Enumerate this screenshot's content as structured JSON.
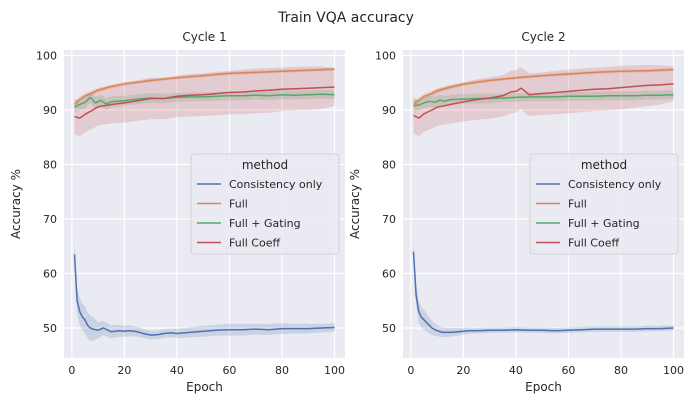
{
  "figure": {
    "title": "Train VQA accuracy"
  },
  "chart_data": [
    {
      "type": "line",
      "title": "Cycle 1",
      "xlabel": "Epoch",
      "ylabel": "Accuracy %",
      "xlim": [
        -3,
        104
      ],
      "ylim": [
        44.5,
        101
      ],
      "xticks": [
        0,
        20,
        40,
        60,
        80,
        100
      ],
      "yticks": [
        50,
        60,
        70,
        80,
        90,
        100
      ],
      "grid": true,
      "legend": {
        "title": "method",
        "placement": "center-right"
      },
      "series": [
        {
          "name": "Consistency only",
          "color": "#4c72b0",
          "x": [
            1,
            2,
            3,
            4,
            5,
            6,
            7,
            8,
            10,
            12,
            15,
            18,
            20,
            22,
            25,
            28,
            30,
            33,
            35,
            38,
            40,
            45,
            50,
            55,
            60,
            65,
            70,
            75,
            80,
            85,
            90,
            95,
            100
          ],
          "y": [
            63.5,
            55.0,
            53.0,
            52.0,
            51.5,
            50.5,
            50.0,
            49.8,
            49.6,
            50.0,
            49.3,
            49.5,
            49.4,
            49.5,
            49.3,
            48.9,
            48.7,
            48.8,
            49.0,
            49.1,
            49.0,
            49.2,
            49.4,
            49.6,
            49.7,
            49.7,
            49.8,
            49.7,
            49.9,
            49.9,
            49.9,
            50.0,
            50.1
          ],
          "band": [
            2.5,
            2.5,
            2.5,
            2.5,
            2.5,
            2.4,
            2.3,
            2.2,
            1.5,
            1.3,
            1.2,
            1.1,
            1.0,
            1.0,
            0.9,
            0.8,
            0.8,
            0.8,
            0.8,
            0.8,
            0.9,
            0.9,
            1.0,
            1.0,
            1.1,
            1.1,
            1.0,
            1.0,
            1.0,
            0.9,
            0.9,
            0.8,
            0.8
          ]
        },
        {
          "name": "Full",
          "color": "#dd8452",
          "x": [
            1,
            3,
            5,
            8,
            10,
            15,
            20,
            25,
            30,
            40,
            50,
            60,
            70,
            80,
            90,
            100
          ],
          "y": [
            91.0,
            92.0,
            92.6,
            93.2,
            93.6,
            94.3,
            94.8,
            95.1,
            95.4,
            95.9,
            96.3,
            96.7,
            96.9,
            97.1,
            97.3,
            97.5
          ],
          "band": [
            0.6,
            0.5,
            0.5,
            0.5,
            0.4,
            0.4,
            0.4,
            0.3,
            0.3,
            0.3,
            0.3,
            0.3,
            0.3,
            0.3,
            0.3,
            0.3
          ]
        },
        {
          "name": "Full + Gating",
          "color": "#55a868",
          "x": [
            1,
            3,
            5,
            7,
            9,
            11,
            13,
            15,
            20,
            25,
            30,
            35,
            40,
            45,
            50,
            55,
            60,
            65,
            70,
            75,
            80,
            85,
            90,
            95,
            100
          ],
          "y": [
            90.5,
            91.0,
            91.4,
            92.3,
            91.3,
            91.8,
            91.1,
            91.5,
            91.7,
            92.0,
            92.2,
            92.1,
            92.3,
            92.4,
            92.4,
            92.5,
            92.6,
            92.6,
            92.7,
            92.6,
            92.8,
            92.7,
            92.8,
            92.9,
            92.8
          ],
          "band": [
            1.0,
            1.0,
            1.2,
            1.0,
            1.1,
            1.0,
            1.1,
            1.0,
            0.9,
            0.9,
            0.9,
            0.9,
            0.8,
            0.8,
            0.8,
            0.8,
            0.8,
            0.8,
            0.8,
            0.8,
            0.8,
            0.8,
            0.8,
            0.8,
            0.8
          ]
        },
        {
          "name": "Full Coeff",
          "color": "#c44e52",
          "x": [
            1,
            3,
            5,
            8,
            10,
            15,
            20,
            25,
            30,
            35,
            40,
            45,
            50,
            55,
            60,
            65,
            70,
            75,
            80,
            85,
            90,
            95,
            100
          ],
          "y": [
            88.8,
            88.5,
            89.2,
            90.0,
            90.6,
            91.0,
            91.3,
            91.7,
            92.1,
            92.1,
            92.5,
            92.7,
            92.8,
            93.0,
            93.2,
            93.3,
            93.5,
            93.6,
            93.8,
            93.9,
            94.0,
            94.1,
            94.2
          ],
          "band": [
            3.3,
            3.3,
            3.3,
            3.4,
            3.4,
            3.5,
            3.6,
            3.7,
            3.8,
            3.8,
            3.8,
            3.9,
            3.9,
            4.0,
            4.0,
            4.1,
            4.1,
            4.1,
            4.0,
            4.0,
            4.0,
            3.9,
            3.5
          ]
        }
      ]
    },
    {
      "type": "line",
      "title": "Cycle 2",
      "xlabel": "Epoch",
      "ylabel": "Accuracy %",
      "xlim": [
        -3,
        104
      ],
      "ylim": [
        44.5,
        101
      ],
      "xticks": [
        0,
        20,
        40,
        60,
        80,
        100
      ],
      "yticks": [
        50,
        60,
        70,
        80,
        90,
        100
      ],
      "grid": true,
      "legend": {
        "title": "method",
        "placement": "center-right"
      },
      "series": [
        {
          "name": "Consistency only",
          "color": "#4c72b0",
          "x": [
            1,
            2,
            3,
            4,
            5,
            6,
            7,
            8,
            10,
            12,
            15,
            18,
            20,
            22,
            25,
            30,
            35,
            40,
            45,
            50,
            55,
            60,
            65,
            70,
            75,
            80,
            85,
            90,
            95,
            100
          ],
          "y": [
            64.0,
            56.0,
            53.0,
            52.0,
            51.5,
            51.0,
            50.5,
            50.0,
            49.5,
            49.2,
            49.2,
            49.3,
            49.4,
            49.5,
            49.5,
            49.6,
            49.6,
            49.7,
            49.6,
            49.6,
            49.5,
            49.6,
            49.7,
            49.8,
            49.8,
            49.8,
            49.8,
            49.9,
            49.9,
            50.0
          ],
          "band": [
            2.0,
            2.0,
            2.0,
            1.9,
            1.8,
            1.7,
            1.5,
            1.3,
            1.0,
            0.9,
            0.8,
            0.7,
            0.6,
            0.6,
            0.5,
            0.5,
            0.5,
            0.5,
            0.5,
            0.5,
            0.5,
            0.5,
            0.5,
            0.5,
            0.5,
            0.5,
            0.5,
            0.5,
            0.5,
            0.5
          ]
        },
        {
          "name": "Full",
          "color": "#dd8452",
          "x": [
            1,
            3,
            5,
            8,
            10,
            15,
            20,
            25,
            30,
            40,
            50,
            60,
            70,
            80,
            90,
            100
          ],
          "y": [
            91.0,
            91.8,
            92.5,
            93.0,
            93.5,
            94.2,
            94.7,
            95.1,
            95.4,
            95.9,
            96.3,
            96.6,
            96.9,
            97.1,
            97.2,
            97.4
          ],
          "band": [
            0.6,
            0.5,
            0.5,
            0.5,
            0.4,
            0.4,
            0.4,
            0.3,
            0.3,
            0.3,
            0.3,
            0.3,
            0.3,
            0.3,
            0.3,
            0.3
          ]
        },
        {
          "name": "Full + Gating",
          "color": "#55a868",
          "x": [
            1,
            3,
            5,
            7,
            9,
            11,
            13,
            15,
            20,
            25,
            30,
            35,
            40,
            45,
            50,
            55,
            60,
            65,
            70,
            75,
            80,
            85,
            90,
            95,
            100
          ],
          "y": [
            90.8,
            90.9,
            91.3,
            91.6,
            91.4,
            91.8,
            91.6,
            91.9,
            92.0,
            92.1,
            92.1,
            92.2,
            92.3,
            92.4,
            92.4,
            92.4,
            92.5,
            92.5,
            92.5,
            92.6,
            92.6,
            92.6,
            92.7,
            92.7,
            92.8
          ],
          "band": [
            1.0,
            1.0,
            1.0,
            1.0,
            1.0,
            1.0,
            0.9,
            0.9,
            0.9,
            0.9,
            0.9,
            0.8,
            0.8,
            0.8,
            0.8,
            0.8,
            0.8,
            0.8,
            0.8,
            0.8,
            0.8,
            0.8,
            0.8,
            0.8,
            0.8
          ]
        },
        {
          "name": "Full Coeff",
          "color": "#c44e52",
          "x": [
            1,
            3,
            5,
            8,
            10,
            15,
            20,
            25,
            30,
            35,
            38,
            40,
            42,
            45,
            50,
            55,
            60,
            65,
            70,
            75,
            80,
            85,
            90,
            95,
            100
          ],
          "y": [
            89.0,
            88.5,
            89.3,
            90.0,
            90.5,
            91.0,
            91.5,
            91.9,
            92.2,
            92.6,
            93.3,
            93.4,
            94.0,
            92.8,
            93.0,
            93.2,
            93.4,
            93.6,
            93.8,
            93.9,
            94.1,
            94.3,
            94.5,
            94.6,
            94.8
          ],
          "band": [
            3.3,
            3.3,
            3.3,
            3.4,
            3.4,
            3.5,
            3.6,
            3.7,
            3.8,
            3.8,
            3.9,
            3.9,
            3.9,
            3.9,
            3.9,
            4.0,
            4.0,
            4.0,
            4.0,
            4.0,
            4.0,
            3.9,
            3.8,
            3.6,
            3.2
          ]
        }
      ]
    }
  ]
}
